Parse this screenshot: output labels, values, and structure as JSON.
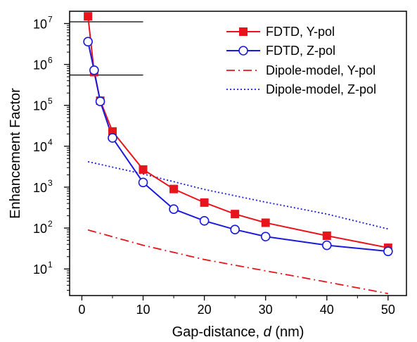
{
  "chart_data": {
    "type": "line",
    "title": "",
    "xlabel": "Gap-distance, d (nm)",
    "xlabel_parts": {
      "prefix": "Gap-distance, ",
      "italic": "d",
      "suffix": " (nm)"
    },
    "ylabel": "Enhancement Factor",
    "xlim": [
      -2,
      53
    ],
    "ylim_log10": [
      0.35,
      7.3
    ],
    "yscale": "log",
    "grid": false,
    "legend_position": "top-right",
    "x_ticks": [
      0,
      10,
      20,
      30,
      40,
      50
    ],
    "x_tick_labels": [
      "0",
      "10",
      "20",
      "30",
      "40",
      "50"
    ],
    "y_ticks_exponent": [
      1,
      2,
      3,
      4,
      5,
      6,
      7
    ],
    "y_tick_base": "10",
    "series": [
      {
        "name": "FDTD, Y-pol",
        "color": "#e8141b",
        "marker": "filled-square",
        "line": "solid",
        "x": [
          1,
          2,
          3,
          5,
          10,
          15,
          20,
          25,
          30,
          40,
          50
        ],
        "y": [
          15000000,
          650000,
          130000,
          23000,
          2700,
          900,
          420,
          220,
          135,
          65,
          33
        ]
      },
      {
        "name": "FDTD, Z-pol",
        "color": "#1a1adc",
        "marker": "open-circle",
        "line": "solid",
        "x": [
          1,
          2,
          3,
          5,
          10,
          15,
          20,
          25,
          30,
          40,
          50
        ],
        "y": [
          3600000,
          720000,
          125000,
          16000,
          1300,
          290,
          150,
          92,
          62,
          38,
          27
        ]
      },
      {
        "name": "Dipole-model, Y-pol",
        "color": "#e8141b",
        "marker": "none",
        "line": "dash-dot",
        "x": [
          1,
          10,
          20,
          30,
          40,
          50
        ],
        "y": [
          90,
          38,
          17,
          9,
          4.8,
          2.5
        ]
      },
      {
        "name": "Dipole-model, Z-pol",
        "color": "#1a1adc",
        "marker": "none",
        "line": "dotted",
        "x": [
          1,
          10,
          20,
          30,
          40,
          50
        ],
        "y": [
          4200,
          2100,
          880,
          430,
          220,
          95
        ]
      }
    ],
    "reference_lines": [
      {
        "y": 11000000,
        "x_start": -2,
        "x_end": 10
      },
      {
        "y": 550000,
        "x_start": -2,
        "x_end": 10
      }
    ]
  }
}
